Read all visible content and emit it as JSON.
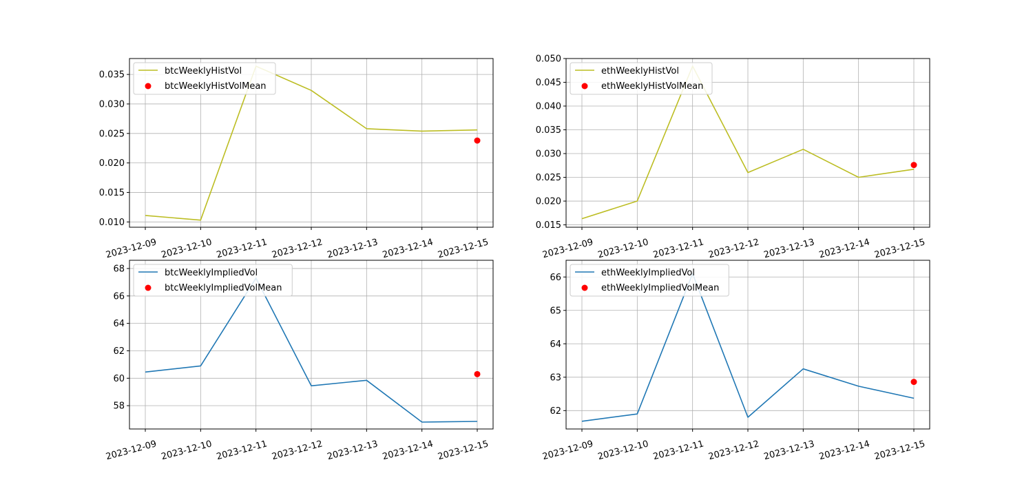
{
  "chart_data": [
    {
      "type": "line",
      "x": [
        "2023-12-09",
        "2023-12-10",
        "2023-12-11",
        "2023-12-12",
        "2023-12-13",
        "2023-12-14",
        "2023-12-15"
      ],
      "series": [
        {
          "name": "btcWeeklyHistVol",
          "kind": "line",
          "color": "#bcbd22",
          "values": [
            0.0111,
            0.0103,
            0.0364,
            0.0323,
            0.0258,
            0.0254,
            0.0256
          ]
        },
        {
          "name": "btcWeeklyHistVolMean",
          "kind": "scatter",
          "color": "#ff0000",
          "points": [
            {
              "x": "2023-12-15",
              "y": 0.0238
            }
          ]
        }
      ],
      "ylim": [
        0.0091,
        0.0377
      ],
      "yticks": [
        0.01,
        0.015,
        0.02,
        0.025,
        0.03,
        0.035
      ],
      "ytick_labels": [
        "0.010",
        "0.015",
        "0.020",
        "0.025",
        "0.030",
        "0.035"
      ],
      "grid": true,
      "legend": "upper left"
    },
    {
      "type": "line",
      "x": [
        "2023-12-09",
        "2023-12-10",
        "2023-12-11",
        "2023-12-12",
        "2023-12-13",
        "2023-12-14",
        "2023-12-15"
      ],
      "series": [
        {
          "name": "ethWeeklyHistVol",
          "kind": "line",
          "color": "#bcbd22",
          "values": [
            0.0163,
            0.02,
            0.0484,
            0.026,
            0.0309,
            0.025,
            0.0267
          ]
        },
        {
          "name": "ethWeeklyHistVolMean",
          "kind": "scatter",
          "color": "#ff0000",
          "points": [
            {
              "x": "2023-12-15",
              "y": 0.0276
            }
          ]
        }
      ],
      "ylim": [
        0.0145,
        0.05
      ],
      "yticks": [
        0.015,
        0.02,
        0.025,
        0.03,
        0.035,
        0.04,
        0.045,
        0.05
      ],
      "ytick_labels": [
        "0.015",
        "0.020",
        "0.025",
        "0.030",
        "0.035",
        "0.040",
        "0.045",
        "0.050"
      ],
      "grid": true,
      "legend": "upper left"
    },
    {
      "type": "line",
      "x": [
        "2023-12-09",
        "2023-12-10",
        "2023-12-11",
        "2023-12-12",
        "2023-12-13",
        "2023-12-14",
        "2023-12-15"
      ],
      "series": [
        {
          "name": "btcWeeklyImpliedVol",
          "kind": "line",
          "color": "#1f77b4",
          "values": [
            60.45,
            60.9,
            67.3,
            59.45,
            59.85,
            56.8,
            56.85
          ]
        },
        {
          "name": "btcWeeklyImpliedVolMean",
          "kind": "scatter",
          "color": "#ff0000",
          "points": [
            {
              "x": "2023-12-15",
              "y": 60.3
            }
          ]
        }
      ],
      "ylim": [
        56.3,
        68.6
      ],
      "yticks": [
        58,
        60,
        62,
        64,
        66,
        68
      ],
      "ytick_labels": [
        "58",
        "60",
        "62",
        "64",
        "66",
        "68"
      ],
      "grid": true,
      "legend": "upper left"
    },
    {
      "type": "line",
      "x": [
        "2023-12-09",
        "2023-12-10",
        "2023-12-11",
        "2023-12-12",
        "2023-12-13",
        "2023-12-14",
        "2023-12-15"
      ],
      "series": [
        {
          "name": "ethWeeklyImpliedVol",
          "kind": "line",
          "color": "#1f77b4",
          "values": [
            61.68,
            61.9,
            66.1,
            61.8,
            63.25,
            62.73,
            62.37
          ]
        },
        {
          "name": "ethWeeklyImpliedVolMean",
          "kind": "scatter",
          "color": "#ff0000",
          "points": [
            {
              "x": "2023-12-15",
              "y": 62.86
            }
          ]
        }
      ],
      "ylim": [
        61.45,
        66.5
      ],
      "yticks": [
        62,
        63,
        64,
        65,
        66
      ],
      "ytick_labels": [
        "62",
        "63",
        "64",
        "65",
        "66"
      ],
      "grid": true,
      "legend": "upper left"
    }
  ]
}
